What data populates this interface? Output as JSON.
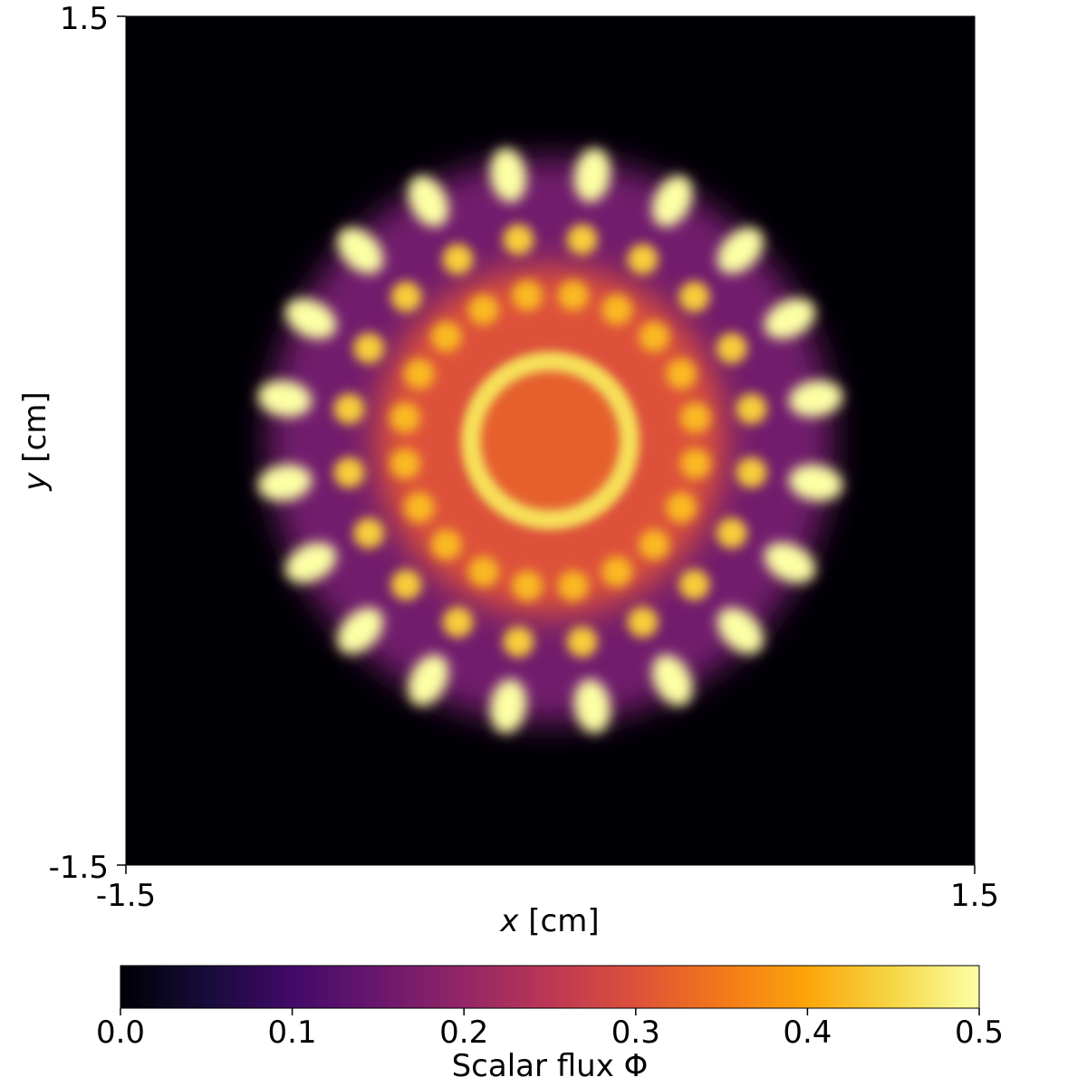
{
  "chart_data": {
    "type": "heatmap",
    "title": "",
    "xlabel_var": "x",
    "xlabel_unit": " [cm]",
    "ylabel_var": "y",
    "ylabel_unit": " [cm]",
    "xlim": [
      -1.5,
      1.5
    ],
    "ylim": [
      -1.5,
      1.5
    ],
    "x_tick_labels": [
      "-1.5",
      "1.5"
    ],
    "y_tick_labels": [
      "-1.5",
      "1.5"
    ],
    "colormap": "inferno",
    "colorbar": {
      "label": "Scalar flux Φ",
      "range": [
        0.0,
        0.5
      ],
      "tick_labels": [
        "0.0",
        "0.1",
        "0.2",
        "0.3",
        "0.4",
        "0.5"
      ],
      "location": "bottom"
    },
    "features": {
      "background_flux": 0.0,
      "central_disk": {
        "radius": 0.25,
        "flux": 0.32
      },
      "central_ring": {
        "radius": 0.28,
        "flux": 0.46
      },
      "inner_plateau": {
        "radius": 0.62,
        "flux": 0.3
      },
      "inner_pins": {
        "count": 20,
        "radius": 0.52,
        "flux": 0.42,
        "start_angle_deg": 9
      },
      "middle_pins": {
        "count": 20,
        "radius": 0.72,
        "flux": 0.44,
        "start_angle_deg": 9
      },
      "outer_petals": {
        "count": 20,
        "radius": 0.95,
        "flux": 0.5,
        "start_angle_deg": 9
      },
      "halo": {
        "radius": 1.0,
        "flux": 0.16
      }
    }
  }
}
